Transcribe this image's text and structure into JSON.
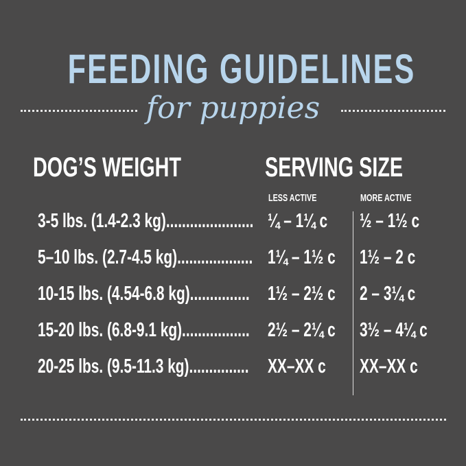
{
  "title": "FEEDING GUIDELINES",
  "subtitle": "for puppies",
  "headers": {
    "weight": "DOG’S WEIGHT",
    "serving": "SERVING SIZE",
    "less_active": "LESS ACTIVE",
    "more_active": "MORE ACTIVE"
  },
  "rows": [
    {
      "weight": "3-5 lbs. (1.4-2.3 kg)......................",
      "less": "¼ – 1¼ c",
      "more": "½ – 1½ c"
    },
    {
      "weight": "5–10 lbs. (2.7-4.5 kg)...................",
      "less": "1¼ – 1½ c",
      "more": "1½ – 2 c"
    },
    {
      "weight": "10-15 lbs. (4.54-6.8 kg)...............",
      "less": "1½ – 2½ c",
      "more": "2 – 3¼ c"
    },
    {
      "weight": "15-20 lbs. (6.8-9.1 kg).................",
      "less": "2½ – 2¼ c",
      "more": "3½ – 4¼ c"
    },
    {
      "weight": "20-25 lbs. (9.5-11.3 kg)...............",
      "less": "XX–XX c",
      "more": "XX–XX c"
    }
  ],
  "colors": {
    "background": "#4a4949",
    "accent": "#b8d5ec",
    "text": "#ffffff"
  }
}
